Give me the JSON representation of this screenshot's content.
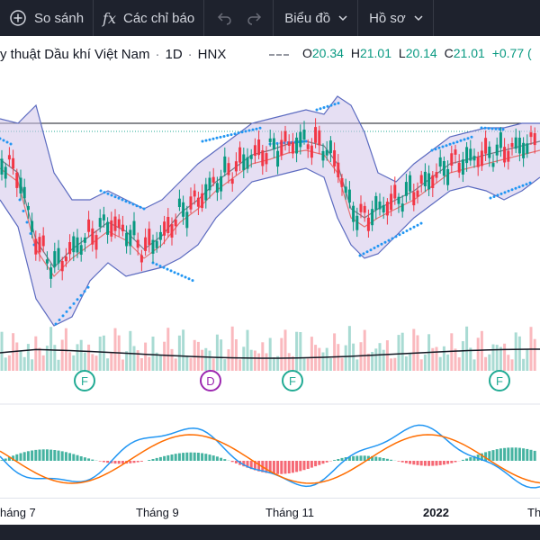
{
  "toolbar": {
    "compare_label": "So sánh",
    "indicators_label": "Các chỉ báo",
    "chart_type_label": "Biểu đồ",
    "profile_label": "Hồ sơ",
    "fx_symbol": "fx",
    "icons": [
      "plus-circle-icon",
      "fx-icon",
      "undo-icon",
      "redo-icon",
      "chevron-down-icon"
    ]
  },
  "legend": {
    "symbol_name": "y thuật Dầu khí Việt Nam",
    "interval": "1D",
    "exchange": "HNX",
    "separator": "·",
    "open_label": "O",
    "open": "20.34",
    "high_label": "H",
    "high": "21.01",
    "low_label": "L",
    "low": "20.14",
    "close_label": "C",
    "close": "21.01",
    "change": "+0.77 (",
    "up_color": "#089981",
    "down_color": "#f23645"
  },
  "volume": {
    "markers": [
      {
        "letter": "F",
        "color": "#22ab94"
      },
      {
        "letter": "D",
        "color": "#9c27b0"
      },
      {
        "letter": "F",
        "color": "#22ab94"
      },
      {
        "letter": "F",
        "color": "#22ab94"
      }
    ]
  },
  "xaxis": {
    "labels": [
      "háng 7",
      "Tháng 9",
      "Tháng 11",
      "2022",
      "Th"
    ]
  },
  "colors": {
    "band_fill": "#d1c4e9",
    "band_line": "#5c6bc0",
    "basis_line": "#e57373",
    "sma_line": "#787b86",
    "sar_dots": "#2196f3",
    "macd_line": "#2196f3",
    "signal_line": "#ff6d00",
    "volume_ma": "#131722",
    "resistance_line": "#131722",
    "last_price_line": "#22ab94"
  }
}
